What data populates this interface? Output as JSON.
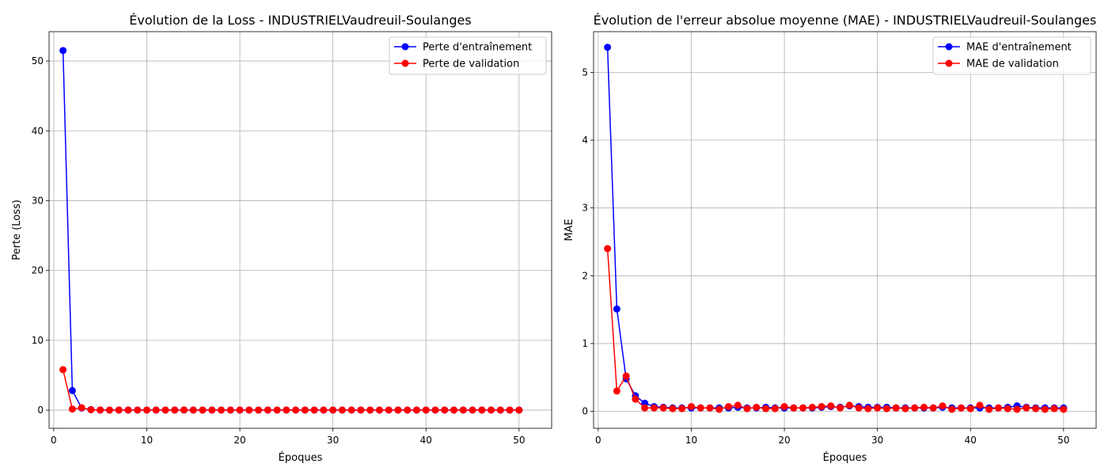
{
  "chart_data": [
    {
      "type": "line",
      "title": "Évolution de la Loss - INDUSTRIELVaudreuil-Soulanges",
      "xlabel": "Époques",
      "ylabel": "Perte (Loss)",
      "xlim": [
        -0.5,
        53.5
      ],
      "ylim": [
        -2.6,
        54.2
      ],
      "xticks": [
        0,
        10,
        20,
        30,
        40,
        50
      ],
      "yticks": [
        0,
        10,
        20,
        30,
        40,
        50
      ],
      "grid": true,
      "legend_position": "top-right",
      "series": [
        {
          "name": "Perte d'entraînement",
          "color": "#0000ff",
          "x": [
            1,
            2,
            3,
            4,
            5,
            6,
            7,
            8,
            9,
            10,
            11,
            12,
            13,
            14,
            15,
            16,
            17,
            18,
            19,
            20,
            21,
            22,
            23,
            24,
            25,
            26,
            27,
            28,
            29,
            30,
            31,
            32,
            33,
            34,
            35,
            36,
            37,
            38,
            39,
            40,
            41,
            42,
            43,
            44,
            45,
            46,
            47,
            48,
            49,
            50
          ],
          "y": [
            51.5,
            2.8,
            0.3,
            0.08,
            0.02,
            0.01,
            0.01,
            0.01,
            0.01,
            0.01,
            0.01,
            0.01,
            0.01,
            0.01,
            0.01,
            0.01,
            0.01,
            0.01,
            0.01,
            0.01,
            0.01,
            0.01,
            0.01,
            0.01,
            0.01,
            0.01,
            0.01,
            0.01,
            0.01,
            0.01,
            0.01,
            0.01,
            0.01,
            0.01,
            0.01,
            0.01,
            0.01,
            0.01,
            0.01,
            0.01,
            0.01,
            0.01,
            0.01,
            0.01,
            0.01,
            0.01,
            0.01,
            0.01,
            0.01,
            0.01
          ]
        },
        {
          "name": "Perte de validation",
          "color": "#ff0000",
          "x": [
            1,
            2,
            3,
            4,
            5,
            6,
            7,
            8,
            9,
            10,
            11,
            12,
            13,
            14,
            15,
            16,
            17,
            18,
            19,
            20,
            21,
            22,
            23,
            24,
            25,
            26,
            27,
            28,
            29,
            30,
            31,
            32,
            33,
            34,
            35,
            36,
            37,
            38,
            39,
            40,
            41,
            42,
            43,
            44,
            45,
            46,
            47,
            48,
            49,
            50
          ],
          "y": [
            5.8,
            0.15,
            0.35,
            0.05,
            0.01,
            0.01,
            0.01,
            0.01,
            0.01,
            0.01,
            0.01,
            0.01,
            0.01,
            0.01,
            0.01,
            0.01,
            0.01,
            0.01,
            0.01,
            0.01,
            0.01,
            0.01,
            0.01,
            0.01,
            0.01,
            0.01,
            0.01,
            0.01,
            0.01,
            0.01,
            0.01,
            0.01,
            0.01,
            0.01,
            0.01,
            0.01,
            0.01,
            0.01,
            0.01,
            0.01,
            0.01,
            0.01,
            0.01,
            0.01,
            0.01,
            0.01,
            0.01,
            0.01,
            0.01,
            0.01
          ]
        }
      ]
    },
    {
      "type": "line",
      "title": "Évolution de l'erreur absolue moyenne (MAE) - INDUSTRIELVaudreuil-Soulanges",
      "xlabel": "Époques",
      "ylabel": "MAE",
      "xlim": [
        -0.5,
        53.5
      ],
      "ylim": [
        -0.25,
        5.6
      ],
      "xticks": [
        0,
        10,
        20,
        30,
        40,
        50
      ],
      "yticks": [
        0,
        1,
        2,
        3,
        4,
        5
      ],
      "grid": true,
      "legend_position": "top-right",
      "series": [
        {
          "name": "MAE d'entraînement",
          "color": "#0000ff",
          "x": [
            1,
            2,
            3,
            4,
            5,
            6,
            7,
            8,
            9,
            10,
            11,
            12,
            13,
            14,
            15,
            16,
            17,
            18,
            19,
            20,
            21,
            22,
            23,
            24,
            25,
            26,
            27,
            28,
            29,
            30,
            31,
            32,
            33,
            34,
            35,
            36,
            37,
            38,
            39,
            40,
            41,
            42,
            43,
            44,
            45,
            46,
            47,
            48,
            49,
            50
          ],
          "y": [
            5.37,
            1.51,
            0.48,
            0.23,
            0.12,
            0.07,
            0.06,
            0.05,
            0.05,
            0.05,
            0.05,
            0.05,
            0.05,
            0.05,
            0.06,
            0.05,
            0.05,
            0.06,
            0.05,
            0.05,
            0.05,
            0.05,
            0.05,
            0.06,
            0.07,
            0.06,
            0.08,
            0.07,
            0.06,
            0.06,
            0.06,
            0.05,
            0.05,
            0.05,
            0.05,
            0.05,
            0.06,
            0.05,
            0.05,
            0.05,
            0.05,
            0.05,
            0.05,
            0.06,
            0.08,
            0.06,
            0.05,
            0.05,
            0.05,
            0.05
          ]
        },
        {
          "name": "MAE de validation",
          "color": "#ff0000",
          "x": [
            1,
            2,
            3,
            4,
            5,
            6,
            7,
            8,
            9,
            10,
            11,
            12,
            13,
            14,
            15,
            16,
            17,
            18,
            19,
            20,
            21,
            22,
            23,
            24,
            25,
            26,
            27,
            28,
            29,
            30,
            31,
            32,
            33,
            34,
            35,
            36,
            37,
            38,
            39,
            40,
            41,
            42,
            43,
            44,
            45,
            46,
            47,
            48,
            49,
            50
          ],
          "y": [
            2.4,
            0.3,
            0.52,
            0.18,
            0.05,
            0.05,
            0.05,
            0.04,
            0.04,
            0.07,
            0.05,
            0.05,
            0.03,
            0.07,
            0.09,
            0.04,
            0.06,
            0.04,
            0.04,
            0.07,
            0.05,
            0.05,
            0.06,
            0.07,
            0.08,
            0.05,
            0.09,
            0.05,
            0.04,
            0.05,
            0.04,
            0.05,
            0.04,
            0.05,
            0.06,
            0.05,
            0.08,
            0.03,
            0.05,
            0.04,
            0.09,
            0.03,
            0.05,
            0.04,
            0.03,
            0.05,
            0.04,
            0.03,
            0.04,
            0.03
          ]
        }
      ]
    }
  ]
}
